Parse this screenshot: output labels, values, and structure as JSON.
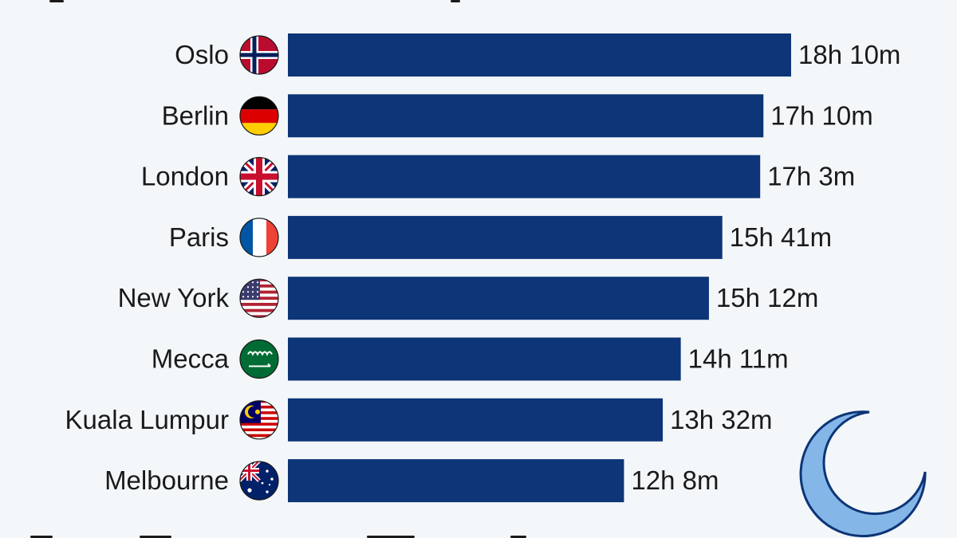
{
  "chart_data": {
    "type": "bar",
    "orientation": "horizontal",
    "unit": "minutes",
    "categories": [
      "Oslo",
      "Berlin",
      "London",
      "Paris",
      "New York",
      "Mecca",
      "Kuala Lumpur",
      "Melbourne"
    ],
    "values": [
      1090,
      1030,
      1023,
      941,
      912,
      851,
      812,
      728
    ],
    "value_labels": [
      "18h 10m",
      "17h 10m",
      "17h 3m",
      "15h 41m",
      "15h 12m",
      "14h 11m",
      "13h 32m",
      "12h 8m"
    ],
    "flags": [
      "norway-flag-icon",
      "germany-flag-icon",
      "uk-flag-icon",
      "france-flag-icon",
      "usa-flag-icon",
      "saudi-arabia-flag-icon",
      "malaysia-flag-icon",
      "australia-flag-icon"
    ],
    "bar_color": "#0d3577",
    "background_color": "#f3f7fa",
    "decoration": "crescent-moon-icon"
  }
}
